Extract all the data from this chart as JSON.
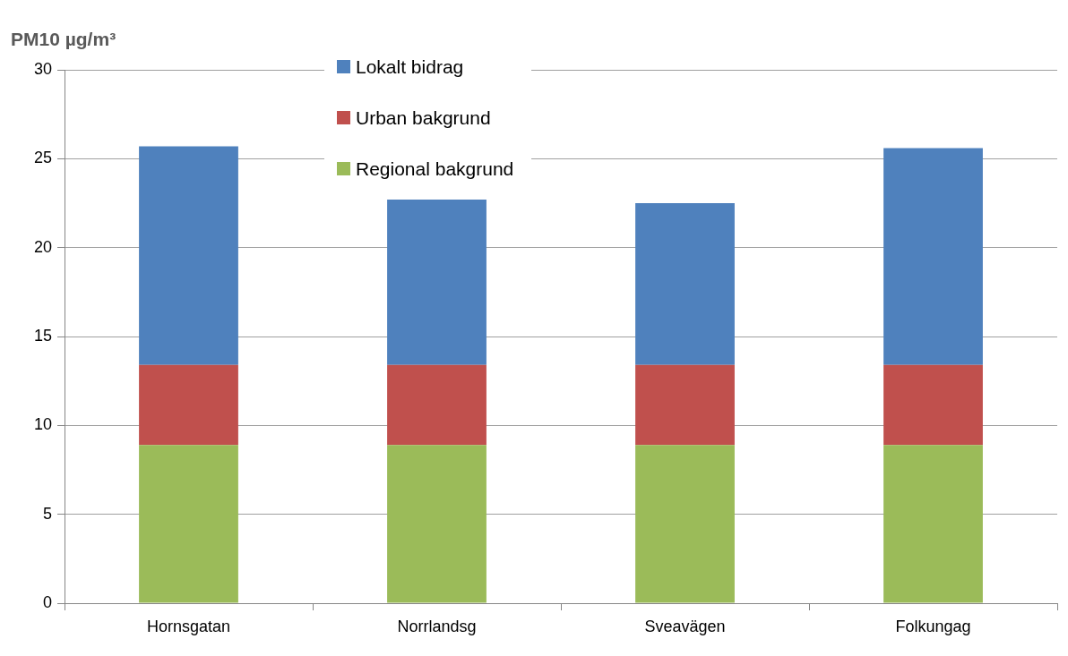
{
  "chart_data": {
    "type": "bar",
    "ylabel": "PM10 µg/m³",
    "categories": [
      "Hornsgatan",
      "Norrlandsg",
      "Sveavägen",
      "Folkungag"
    ],
    "stacked": true,
    "series": [
      {
        "name": "Regional bakgrund",
        "color": "#9bbb59",
        "values": [
          8.9,
          8.9,
          8.9,
          8.9
        ]
      },
      {
        "name": "Urban bakgrund",
        "color": "#c0504d",
        "values": [
          4.5,
          4.5,
          4.5,
          4.5
        ]
      },
      {
        "name": "Lokalt bidrag",
        "color": "#4f81bd",
        "values": [
          12.3,
          9.3,
          9.1,
          12.2
        ]
      }
    ],
    "ylim": [
      0,
      30
    ],
    "yticks": [
      0,
      5,
      10,
      15,
      20,
      25,
      30
    ],
    "grid": "y",
    "legend": "top"
  }
}
